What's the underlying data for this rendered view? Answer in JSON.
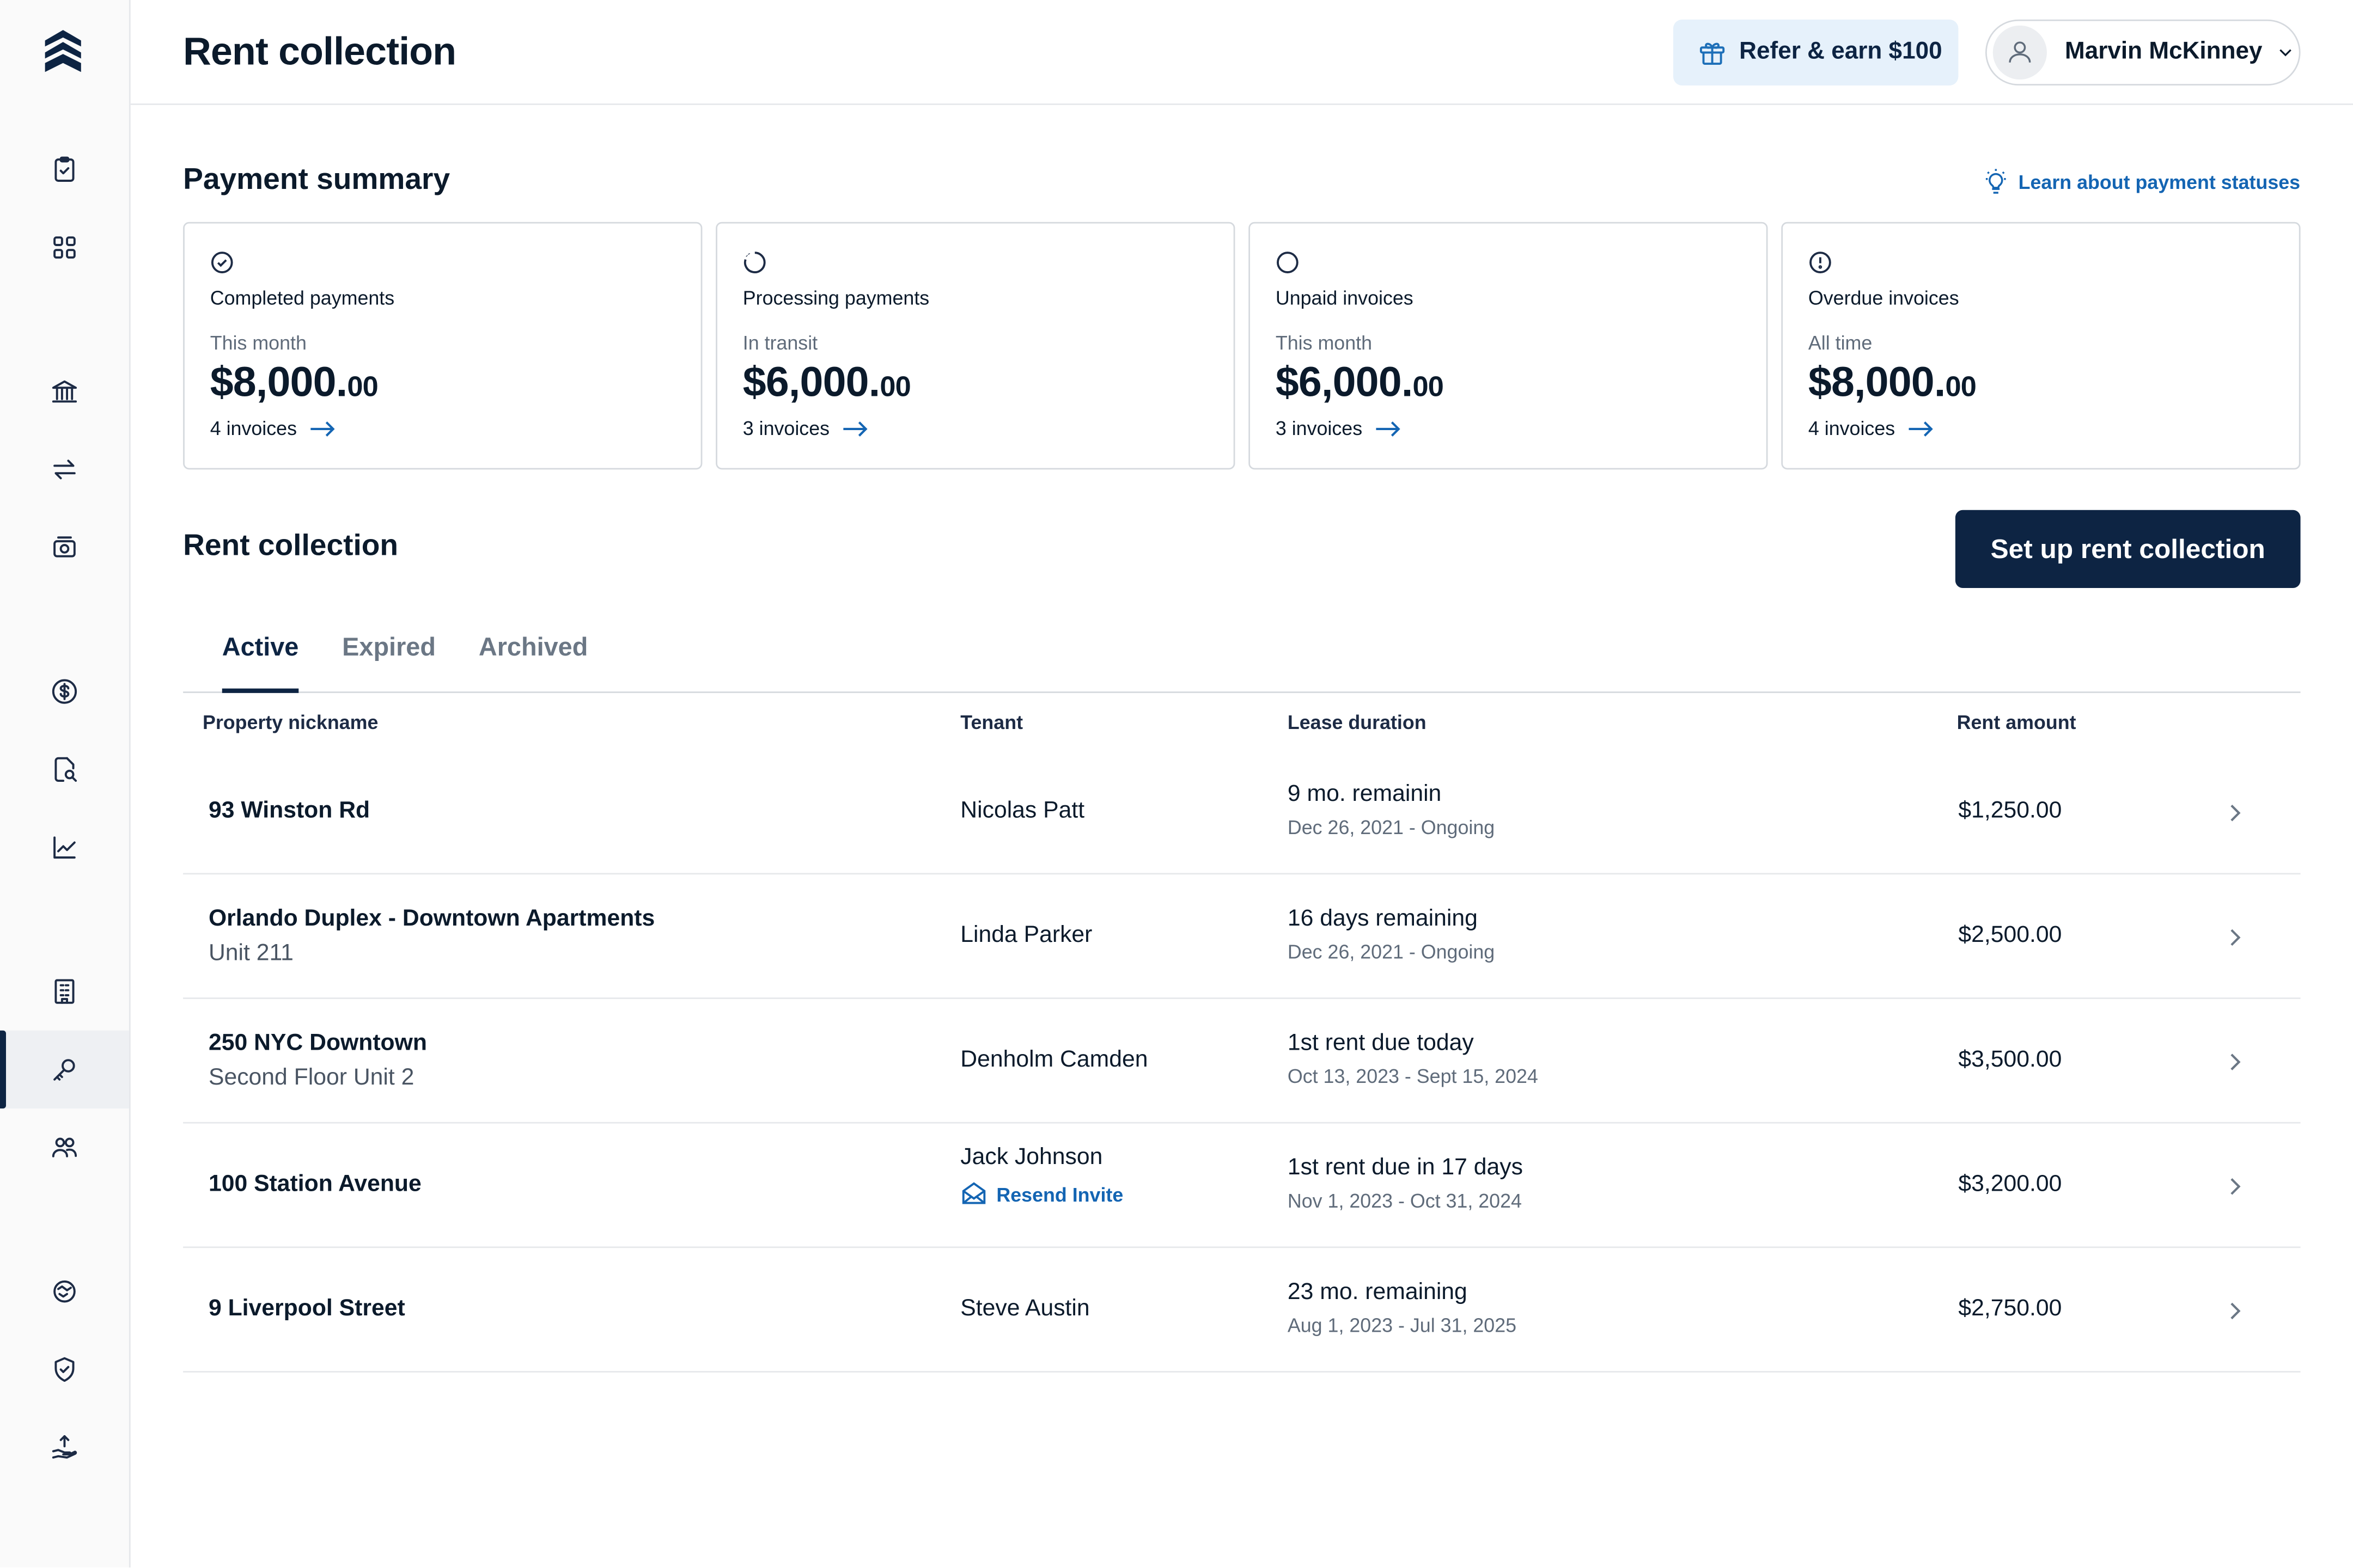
{
  "header": {
    "title": "Rent collection",
    "refer_label": "Refer & earn $100",
    "user_name": "Marvin McKinney"
  },
  "sidebar": {
    "items": [
      {
        "icon": "clipboard-check-icon"
      },
      {
        "icon": "grid-icon"
      },
      {
        "icon": "bank-icon"
      },
      {
        "icon": "transfer-arrows-icon"
      },
      {
        "icon": "cash-icon"
      },
      {
        "icon": "dollar-circle-icon"
      },
      {
        "icon": "document-search-icon"
      },
      {
        "icon": "chart-line-icon"
      },
      {
        "icon": "building-icon"
      },
      {
        "icon": "key-icon",
        "active": true
      },
      {
        "icon": "users-icon"
      },
      {
        "icon": "handshake-icon"
      },
      {
        "icon": "shield-check-icon"
      },
      {
        "icon": "hand-upload-icon"
      }
    ]
  },
  "summary": {
    "title": "Payment summary",
    "learn_link": "Learn about payment statuses",
    "cards": [
      {
        "title": "Completed payments",
        "period": "This month",
        "amount_main": "$8,000.",
        "amount_cents": "00",
        "invoices": "4 invoices"
      },
      {
        "title": "Processing payments",
        "period": "In transit",
        "amount_main": "$6,000.",
        "amount_cents": "00",
        "invoices": "3 invoices"
      },
      {
        "title": "Unpaid invoices",
        "period": "This month",
        "amount_main": "$6,000.",
        "amount_cents": "00",
        "invoices": "3 invoices"
      },
      {
        "title": "Overdue invoices",
        "period": "All time",
        "amount_main": "$8,000.",
        "amount_cents": "00",
        "invoices": "4 invoices"
      }
    ]
  },
  "rent": {
    "title": "Rent collection",
    "setup_label": "Set up rent collection",
    "tabs": [
      "Active",
      "Expired",
      "Archived"
    ],
    "columns": [
      "Property nickname",
      "Tenant",
      "Lease duration",
      "Rent amount"
    ],
    "rows": [
      {
        "property": "93 Winston Rd",
        "unit": "",
        "tenant": "Nicolas Patt",
        "lease_status": "9 mo. remainin",
        "lease_dates": "Dec 26, 2021 - Ongoing",
        "rent": "$1,250.00"
      },
      {
        "property": "Orlando Duplex - Downtown Apartments",
        "unit": "Unit 211",
        "tenant": "Linda Parker",
        "lease_status": "16 days remaining",
        "lease_dates": "Dec 26, 2021 - Ongoing",
        "rent": "$2,500.00"
      },
      {
        "property": "250 NYC Downtown",
        "unit": "Second Floor Unit 2",
        "tenant": "Denholm Camden",
        "lease_status": "1st rent due today",
        "lease_dates": "Oct 13, 2023 - Sept 15, 2024",
        "rent": "$3,500.00"
      },
      {
        "property": "100 Station Avenue",
        "unit": "",
        "tenant": "Jack Johnson",
        "resend": "Resend Invite",
        "lease_status": "1st rent due in 17 days",
        "lease_dates": "Nov 1, 2023 - Oct 31, 2024",
        "rent": "$3,200.00"
      },
      {
        "property": "9 Liverpool Street",
        "unit": "",
        "tenant": "Steve Austin",
        "lease_status": "23 mo. remaining",
        "lease_dates": "Aug 1, 2023 - Jul 31, 2025",
        "rent": "$2,750.00"
      }
    ]
  },
  "colors": {
    "primary": "#0d2443",
    "link": "#1465b3",
    "refer_bg": "#e6f1fb",
    "border": "#d5d9de"
  }
}
